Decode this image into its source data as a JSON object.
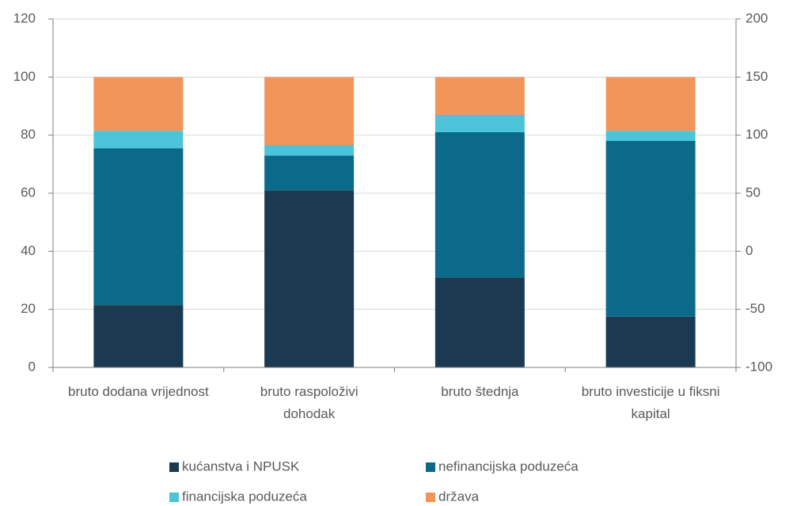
{
  "chart_data": {
    "type": "stacked_bar",
    "categories": [
      "bruto dodana vrijednost",
      "bruto raspoloživi dohodak",
      "bruto štednja",
      "bruto investicije u fiksni kapital"
    ],
    "series": [
      {
        "name": "kućanstva i NPUSK",
        "color": "#1b3a52",
        "values": [
          21.5,
          61,
          31,
          17.5
        ]
      },
      {
        "name": "nefinancijska poduzeća",
        "color": "#0b6a8a",
        "values": [
          54,
          12,
          50,
          60.5
        ]
      },
      {
        "name": "financijska poduzeća",
        "color": "#4bc4d9",
        "values": [
          6,
          3.5,
          6,
          3.5
        ]
      },
      {
        "name": "država",
        "color": "#f2955a",
        "values": [
          18.5,
          23.5,
          13,
          18.5
        ]
      }
    ],
    "ylim": [
      0,
      120
    ],
    "yticks": [
      0,
      20,
      40,
      60,
      80,
      100,
      120
    ],
    "y2lim": [
      -100,
      200
    ],
    "y2ticks": [
      -100,
      -50,
      0,
      50,
      100,
      150,
      200
    ],
    "grid": true,
    "legend": "bottom"
  }
}
